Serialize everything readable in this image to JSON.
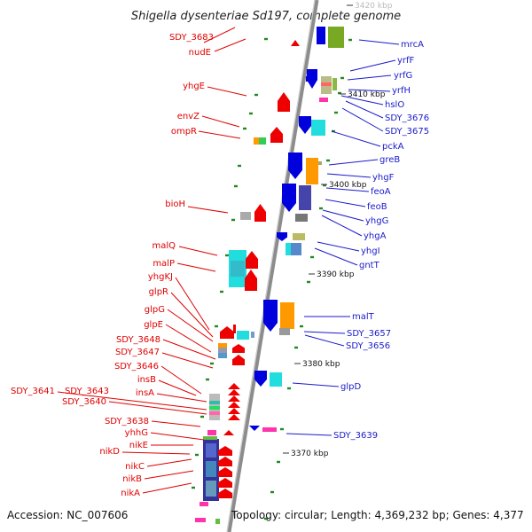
{
  "title": "Shigella dysenteriae Sd197, complete genome",
  "footer": {
    "accession": "Accession: NC_007606",
    "topology": "Topology: circular; Length: 4,369,232 bp; Genes: 4,377"
  },
  "scale_labels": [
    "3420 kbp",
    "3410 kbp",
    "3400 kbp",
    "3390 kbp",
    "3380 kbp",
    "3370 kbp"
  ],
  "left_genes": [
    "SDY_3683",
    "nudE",
    "yhgE",
    "envZ",
    "ompR",
    "bioH",
    "malQ",
    "malP",
    "yhgKJ",
    "glpR",
    "glpG",
    "glpE",
    "SDY_3648",
    "SDY_3647",
    "SDY_3646",
    "insB",
    "insA",
    "SDY_3641",
    "SDY_3643",
    "SDY_3640",
    "SDY_3638",
    "yhhG",
    "nikE",
    "nikD",
    "nikC",
    "nikB",
    "nikA"
  ],
  "right_genes": [
    "mrcA",
    "yrfF",
    "yrfG",
    "yrfH",
    "hslO",
    "SDY_3676",
    "SDY_3675",
    "pckA",
    "greB",
    "yhgF",
    "feoA",
    "feoB",
    "yhgG",
    "yhgA",
    "yhgI",
    "gntT",
    "malT",
    "SDY_3657",
    "SDY_3656",
    "glpD",
    "SDY_3639"
  ],
  "colors": {
    "forward_strand": "#ee0000",
    "reverse_strand": "#0000dd",
    "label_red": "#e00000",
    "label_blue": "#1a1acc",
    "axis": "#8c8c8c",
    "cyan": "#22dddd",
    "orange": "#ff9900",
    "olive": "#77aa22",
    "navy": "#4444aa",
    "grey": "#aaaaaa"
  }
}
